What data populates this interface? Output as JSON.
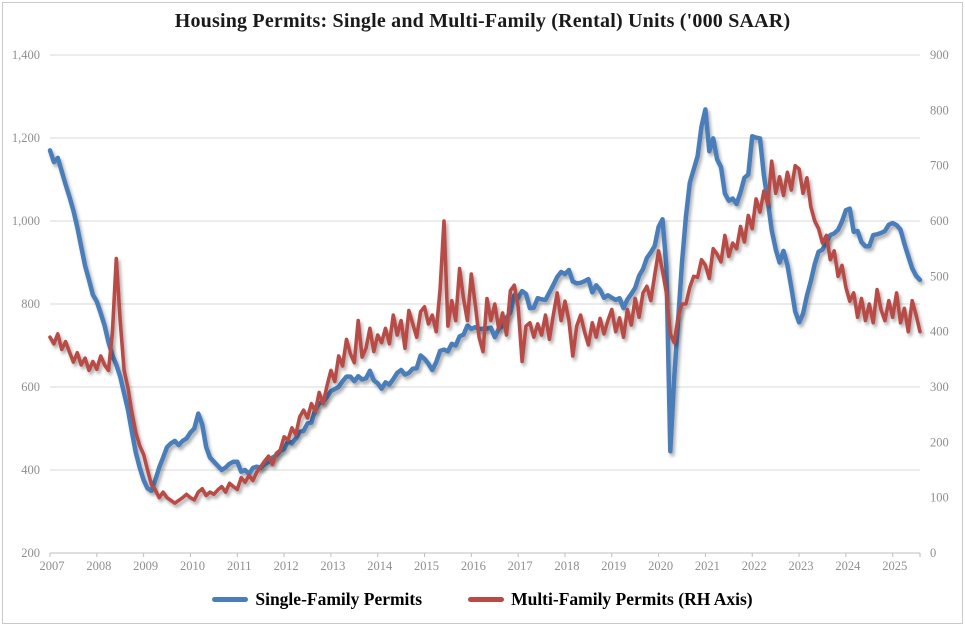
{
  "title": "Housing Permits: Single and Multi-Family (Rental) Units  ('000 SAAR)",
  "legend": {
    "single_family_label": "Single-Family Permits",
    "multi_family_label": "Multi-Family Permits (RH Axis)"
  },
  "colors": {
    "single_family": "#4a7ebb",
    "multi_family": "#b94b47",
    "gridline": "#d9d9d9",
    "axis_line": "#bfbfbf",
    "axis_text": "#8f8f8f"
  },
  "chart_data": {
    "type": "line",
    "title": "Housing Permits: Single and Multi-Family (Rental) Units  ('000 SAAR)",
    "x_start_year": 2007,
    "x_months_span": 224,
    "grid": "horizontal",
    "legend_position": "bottom",
    "left_axis": {
      "min": 200,
      "max": 1400,
      "tick_labels": [
        "200",
        "400",
        "600",
        "800",
        "1,000",
        "1,200",
        "1,400"
      ],
      "tick_values": [
        200,
        400,
        600,
        800,
        1000,
        1200,
        1400
      ]
    },
    "right_axis": {
      "min": 0,
      "max": 900,
      "tick_labels": [
        "0",
        "100",
        "200",
        "300",
        "400",
        "500",
        "600",
        "700",
        "800",
        "900"
      ],
      "tick_values": [
        0,
        100,
        200,
        300,
        400,
        500,
        600,
        700,
        800,
        900
      ]
    },
    "x_tick_labels": [
      "2007",
      "2008",
      "2009",
      "2010",
      "2011",
      "2012",
      "2013",
      "2014",
      "2015",
      "2016",
      "2017",
      "2018",
      "2019",
      "2020",
      "2021",
      "2022",
      "2023",
      "2024",
      "2025"
    ],
    "series": [
      {
        "name": "Single-Family Permits",
        "axis": "left",
        "color": "#4a7ebb",
        "stroke_width": 4.5,
        "values": [
          1170,
          1142,
          1152,
          1120,
          1088,
          1058,
          1025,
          985,
          938,
          892,
          858,
          822,
          806,
          778,
          748,
          708,
          676,
          654,
          625,
          585,
          545,
          492,
          442,
          406,
          376,
          356,
          350,
          376,
          406,
          430,
          455,
          464,
          470,
          460,
          470,
          476,
          490,
          500,
          536,
          510,
          456,
          430,
          420,
          410,
          400,
          406,
          415,
          420,
          420,
          396,
          400,
          390,
          405,
          408,
          405,
          414,
          419,
          430,
          435,
          446,
          450,
          470,
          464,
          476,
          492,
          494,
          512,
          514,
          545,
          560,
          565,
          576,
          590,
          595,
          600,
          614,
          625,
          625,
          614,
          626,
          618,
          621,
          639,
          616,
          609,
          596,
          611,
          606,
          619,
          634,
          641,
          630,
          634,
          644,
          645,
          676,
          668,
          656,
          641,
          660,
          687,
          690,
          686,
          704,
          700,
          722,
          726,
          748,
          740,
          744,
          740,
          740,
          741,
          743,
          720,
          740,
          747,
          766,
          780,
          821,
          815,
          831,
          824,
          790,
          791,
          814,
          811,
          810,
          828,
          846,
          865,
          877,
          872,
          882,
          854,
          850,
          851,
          855,
          860,
          828,
          845,
          834,
          815,
          821,
          815,
          810,
          814,
          790,
          811,
          824,
          839,
          868,
          884,
          911,
          924,
          940,
          986,
          1004,
          890,
          445,
          622,
          760,
          900,
          1010,
          1092,
          1124,
          1156,
          1228,
          1269,
          1168,
          1199,
          1149,
          1130,
          1066,
          1049,
          1054,
          1041,
          1069,
          1104,
          1112,
          1204,
          1201,
          1199,
          1110,
          1048,
          978,
          932,
          900,
          928,
          894,
          840,
          782,
          756,
          776,
          820,
          855,
          896,
          926,
          931,
          949,
          966,
          970,
          979,
          999,
          1026,
          1030,
          974,
          976,
          949,
          939,
          939,
          966,
          968,
          971,
          976,
          991,
          995,
          990,
          979,
          945,
          915,
          886,
          868,
          858
        ]
      },
      {
        "name": "Multi-Family Permits (RH Axis)",
        "axis": "right",
        "color": "#b94b47",
        "stroke_width": 3.6,
        "values": [
          390,
          378,
          396,
          368,
          382,
          363,
          345,
          362,
          340,
          352,
          330,
          346,
          332,
          356,
          340,
          330,
          398,
          532,
          420,
          330,
          298,
          254,
          218,
          194,
          178,
          150,
          124,
          114,
          100,
          110,
          100,
          95,
          90,
          95,
          100,
          106,
          100,
          96,
          110,
          116,
          104,
          110,
          106,
          114,
          120,
          110,
          126,
          120,
          115,
          136,
          128,
          140,
          131,
          146,
          156,
          166,
          175,
          160,
          180,
          186,
          210,
          204,
          226,
          214,
          246,
          258,
          244,
          270,
          256,
          290,
          270,
          302,
          330,
          310,
          356,
          338,
          386,
          360,
          344,
          420,
          354,
          370,
          406,
          364,
          394,
          380,
          406,
          378,
          430,
          394,
          420,
          370,
          438,
          414,
          390,
          436,
          445,
          414,
          430,
          400,
          476,
          600,
          410,
          456,
          420,
          514,
          460,
          420,
          504,
          450,
          390,
          364,
          460,
          420,
          450,
          405,
          434,
          394,
          474,
          484,
          444,
          346,
          410,
          416,
          390,
          414,
          394,
          430,
          386,
          430,
          470,
          420,
          455,
          420,
          356,
          410,
          430,
          400,
          376,
          416,
          390,
          424,
          396,
          420,
          440,
          400,
          425,
          390,
          440,
          412,
          460,
          426,
          470,
          482,
          456,
          502,
          546,
          510,
          470,
          396,
          380,
          426,
          450,
          450,
          480,
          500,
          498,
          530,
          520,
          496,
          550,
          540,
          526,
          574,
          536,
          560,
          550,
          590,
          562,
          610,
          586,
          640,
          616,
          654,
          630,
          708,
          650,
          680,
          646,
          688,
          656,
          700,
          694,
          650,
          678,
          626,
          600,
          586,
          560,
          574,
          530,
          546,
          500,
          520,
          480,
          455,
          470,
          426,
          460,
          420,
          450,
          416,
          476,
          440,
          420,
          456,
          426,
          470,
          416,
          442,
          400,
          456,
          430,
          400
        ]
      }
    ]
  }
}
